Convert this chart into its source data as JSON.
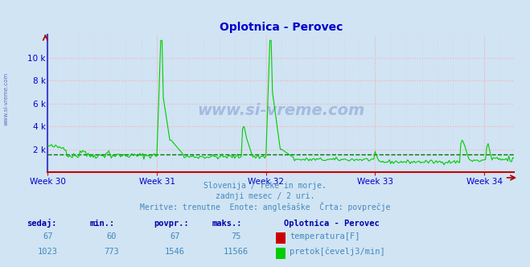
{
  "title": "Oplotnica - Perovec",
  "title_color": "#0000cc",
  "bg_color": "#d0e4f4",
  "plot_bg_color": "#d0e4f4",
  "grid_color_major": "#ffaaaa",
  "grid_color_minor": "#ddd0d0",
  "x_tick_labels": [
    "Week 30",
    "Week 31",
    "Week 32",
    "Week 33",
    "Week 34"
  ],
  "x_tick_positions": [
    0,
    84,
    168,
    252,
    336
  ],
  "ylim": [
    0,
    12000
  ],
  "yticks": [
    2000,
    4000,
    6000,
    8000,
    10000
  ],
  "ytick_labels": [
    "2 k",
    "4 k",
    "6 k",
    "8 k",
    "10 k"
  ],
  "avg_line_value": 1546,
  "avg_line_color": "#007700",
  "flow_line_color": "#00cc00",
  "temp_line_color": "#cc0000",
  "left_axis_color": "#4444cc",
  "bottom_axis_color": "#cc0000",
  "watermark_color": "#2244aa",
  "sidebar_color": "#2244aa",
  "subtitle1": "Slovenija / reke in morje.",
  "subtitle2": "zadnji mesec / 2 uri.",
  "subtitle3": "Meritve: trenutne  Enote: anglešaške  Črta: povprečje",
  "subtitle_color": "#4488bb",
  "table_header_color": "#0000aa",
  "table_value_color": "#4488bb",
  "legend_title": "Oplotnica - Perovec",
  "legend_title_color": "#0000aa",
  "sedaj": 1023,
  "min_val": 773,
  "povpr": 1546,
  "maks": 11566,
  "sedaj_temp": 67,
  "min_temp": 60,
  "povpr_temp": 67,
  "maks_temp": 75,
  "n_points": 360
}
